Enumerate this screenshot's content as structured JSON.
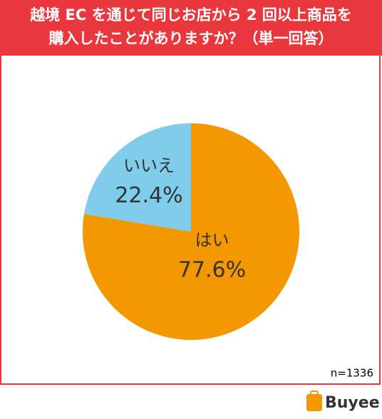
{
  "chart_data": {
    "type": "pie",
    "title": [
      "越境 EC を通じて同じお店から 2 回以上商品を",
      "購入したことがありますか？（単一回答）"
    ],
    "categories": [
      "はい",
      "いいえ"
    ],
    "values": [
      77.6,
      22.4
    ],
    "value_labels": [
      "77.6%",
      "22.4%"
    ],
    "colors": [
      "#F39800",
      "#7FCDEA"
    ],
    "note": "n=1336",
    "brand": "Buyee"
  }
}
